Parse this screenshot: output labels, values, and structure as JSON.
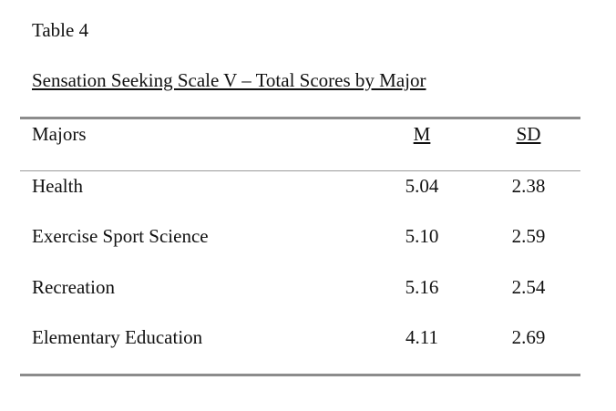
{
  "table": {
    "label": "Table 4",
    "title": "Sensation Seeking Scale V – Total Scores by Major",
    "columns": {
      "major": "Majors",
      "mean": "M",
      "sd": "SD"
    },
    "rows": [
      {
        "major": "Health",
        "mean": "5.04",
        "sd": "2.38"
      },
      {
        "major": "Exercise Sport Science",
        "mean": "5.10",
        "sd": "2.59"
      },
      {
        "major": "Recreation",
        "mean": "5.16",
        "sd": "2.54"
      },
      {
        "major": "Elementary Education",
        "mean": "4.11",
        "sd": "2.69"
      }
    ]
  }
}
